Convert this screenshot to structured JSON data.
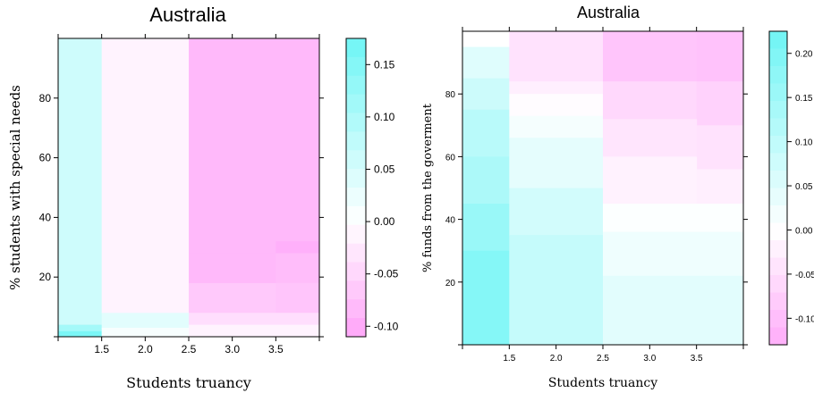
{
  "chart_data": [
    {
      "type": "heatmap",
      "title": "Australia",
      "xlabel": "Students truancy",
      "ylabel": "% students with special needs",
      "xlim": [
        1.0,
        4.0
      ],
      "ylim": [
        0,
        100
      ],
      "xticks": [
        1.5,
        2.0,
        2.5,
        3.0,
        3.5
      ],
      "yticks": [
        20,
        40,
        60,
        80
      ],
      "colorbar": {
        "ticks": [
          0.15,
          0.1,
          0.05,
          0.0,
          -0.05,
          -0.1
        ],
        "tick_labels": [
          "0.15",
          "0.10",
          "0.05",
          "0.00",
          "-0.05",
          "-0.10"
        ],
        "min": -0.11,
        "max": 0.175,
        "low_color": "#ff6ef5",
        "high_color": "#6ff5f5",
        "levels": 16
      },
      "cells": [
        {
          "x0": 1.0,
          "x1": 1.5,
          "y0": 2,
          "y1": 100,
          "value": 0.06
        },
        {
          "x0": 1.0,
          "x1": 1.5,
          "y0": 0,
          "y1": 2,
          "value": 0.16
        },
        {
          "x0": 1.0,
          "x1": 1.5,
          "y0": 2,
          "y1": 4,
          "value": 0.11
        },
        {
          "x0": 1.5,
          "x1": 2.5,
          "y0": 8,
          "y1": 100,
          "value": -0.015
        },
        {
          "x0": 1.5,
          "x1": 2.5,
          "y0": 3,
          "y1": 8,
          "value": 0.035
        },
        {
          "x0": 1.5,
          "x1": 2.5,
          "y0": 0,
          "y1": 3,
          "value": 0.01
        },
        {
          "x0": 2.5,
          "x1": 4.0,
          "y0": 28,
          "y1": 100,
          "value": -0.085
        },
        {
          "x0": 2.5,
          "x1": 3.5,
          "y0": 18,
          "y1": 28,
          "value": -0.085
        },
        {
          "x0": 3.5,
          "x1": 4.0,
          "y0": 28,
          "y1": 32,
          "value": -0.095
        },
        {
          "x0": 3.5,
          "x1": 4.0,
          "y0": 18,
          "y1": 28,
          "value": -0.08
        },
        {
          "x0": 2.5,
          "x1": 3.5,
          "y0": 8,
          "y1": 18,
          "value": -0.065
        },
        {
          "x0": 3.5,
          "x1": 4.0,
          "y0": 8,
          "y1": 18,
          "value": -0.07
        },
        {
          "x0": 2.5,
          "x1": 4.0,
          "y0": 4,
          "y1": 8,
          "value": -0.04
        },
        {
          "x0": 2.5,
          "x1": 4.0,
          "y0": 0,
          "y1": 4,
          "value": -0.015
        }
      ]
    },
    {
      "type": "heatmap",
      "title": "Australia",
      "xlabel": "Students truancy",
      "ylabel": "% funds from the goverment",
      "xlim": [
        1.0,
        4.0
      ],
      "ylim": [
        0,
        100
      ],
      "xticks": [
        1.5,
        2.0,
        2.5,
        3.0,
        3.5
      ],
      "yticks": [
        20,
        40,
        60,
        80
      ],
      "colorbar": {
        "ticks": [
          0.2,
          0.15,
          0.1,
          0.05,
          0.0,
          -0.05,
          -0.1
        ],
        "tick_labels": [
          "0.20",
          "0.15",
          "0.10",
          "0.05",
          "0.00",
          "-0.05",
          "-0.10"
        ],
        "min": -0.13,
        "max": 0.225,
        "low_color": "#ff6ef5",
        "high_color": "#6ff5f5",
        "levels": 18
      },
      "cells": [
        {
          "x0": 1.0,
          "x1": 1.5,
          "y0": 95,
          "y1": 100,
          "value": 0.0
        },
        {
          "x0": 1.0,
          "x1": 1.5,
          "y0": 85,
          "y1": 95,
          "value": 0.05
        },
        {
          "x0": 1.0,
          "x1": 1.5,
          "y0": 75,
          "y1": 85,
          "value": 0.08
        },
        {
          "x0": 1.0,
          "x1": 1.5,
          "y0": 60,
          "y1": 75,
          "value": 0.11
        },
        {
          "x0": 1.0,
          "x1": 1.5,
          "y0": 45,
          "y1": 60,
          "value": 0.13
        },
        {
          "x0": 1.0,
          "x1": 1.5,
          "y0": 30,
          "y1": 45,
          "value": 0.16
        },
        {
          "x0": 1.0,
          "x1": 1.5,
          "y0": 0,
          "y1": 30,
          "value": 0.19
        },
        {
          "x0": 1.5,
          "x1": 2.5,
          "y0": 84,
          "y1": 100,
          "value": -0.045
        },
        {
          "x0": 1.5,
          "x1": 2.5,
          "y0": 80,
          "y1": 84,
          "value": -0.025
        },
        {
          "x0": 1.5,
          "x1": 2.5,
          "y0": 73,
          "y1": 80,
          "value": -0.005
        },
        {
          "x0": 1.5,
          "x1": 2.5,
          "y0": 66,
          "y1": 73,
          "value": 0.015
        },
        {
          "x0": 1.5,
          "x1": 2.5,
          "y0": 50,
          "y1": 66,
          "value": 0.04
        },
        {
          "x0": 1.5,
          "x1": 2.5,
          "y0": 35,
          "y1": 50,
          "value": 0.07
        },
        {
          "x0": 1.5,
          "x1": 2.5,
          "y0": 0,
          "y1": 35,
          "value": 0.09
        },
        {
          "x0": 2.5,
          "x1": 3.5,
          "y0": 84,
          "y1": 100,
          "value": -0.09
        },
        {
          "x0": 3.5,
          "x1": 4.0,
          "y0": 84,
          "y1": 100,
          "value": -0.095
        },
        {
          "x0": 2.5,
          "x1": 3.5,
          "y0": 72,
          "y1": 84,
          "value": -0.06
        },
        {
          "x0": 3.5,
          "x1": 4.0,
          "y0": 70,
          "y1": 84,
          "value": -0.07
        },
        {
          "x0": 2.5,
          "x1": 3.5,
          "y0": 60,
          "y1": 72,
          "value": -0.04
        },
        {
          "x0": 3.5,
          "x1": 4.0,
          "y0": 56,
          "y1": 70,
          "value": -0.045
        },
        {
          "x0": 2.5,
          "x1": 3.5,
          "y0": 45,
          "y1": 60,
          "value": -0.02
        },
        {
          "x0": 3.5,
          "x1": 4.0,
          "y0": 44,
          "y1": 56,
          "value": -0.025
        },
        {
          "x0": 2.5,
          "x1": 4.0,
          "y0": 36,
          "y1": 45,
          "value": 0.005
        },
        {
          "x0": 2.5,
          "x1": 4.0,
          "y0": 22,
          "y1": 36,
          "value": 0.025
        },
        {
          "x0": 2.5,
          "x1": 4.0,
          "y0": 0,
          "y1": 22,
          "value": 0.045
        }
      ]
    }
  ]
}
